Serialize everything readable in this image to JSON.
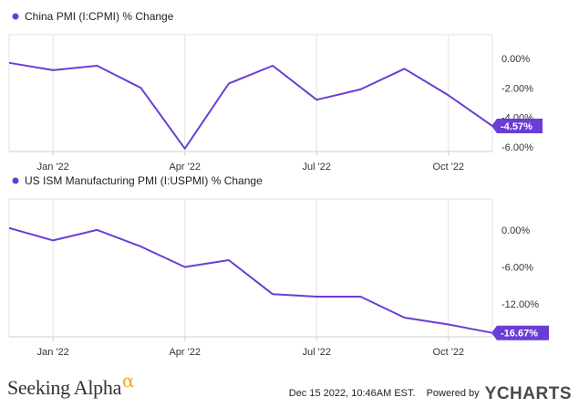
{
  "chart_data": [
    {
      "type": "line",
      "title": "China PMI (I:CPMI) % Change",
      "color": "#6a3dd6",
      "x": [
        "2021-12",
        "2022-01",
        "2022-02",
        "2022-03",
        "2022-04",
        "2022-05",
        "2022-06",
        "2022-07",
        "2022-08",
        "2022-09",
        "2022-10",
        "2022-11"
      ],
      "y": [
        -0.3,
        -0.8,
        -0.5,
        -2.0,
        -6.1,
        -1.7,
        -0.5,
        -2.8,
        -2.1,
        -0.7,
        -2.5,
        -4.57
      ],
      "x_ticks": [
        "Jan '22",
        "Apr '22",
        "Jul '22",
        "Oct '22"
      ],
      "y_ticks": [
        "0.00%",
        "-2.00%",
        "-4.00%",
        "-6.00%"
      ],
      "y_tick_values": [
        0,
        -2,
        -4,
        -6
      ],
      "ylim": [
        -6.3,
        1.6
      ],
      "last_label": "-4.57%"
    },
    {
      "type": "line",
      "title": "US ISM Manufacturing PMI (I:USPMI) % Change",
      "color": "#6a3dd6",
      "x": [
        "2021-12",
        "2022-01",
        "2022-02",
        "2022-03",
        "2022-04",
        "2022-05",
        "2022-06",
        "2022-07",
        "2022-08",
        "2022-09",
        "2022-10",
        "2022-11"
      ],
      "y": [
        0.3,
        -1.7,
        0.0,
        -2.7,
        -6.0,
        -4.9,
        -10.4,
        -10.8,
        -10.8,
        -14.2,
        -15.3,
        -16.67
      ],
      "x_ticks": [
        "Jan '22",
        "Apr '22",
        "Jul '22",
        "Oct '22"
      ],
      "y_ticks": [
        "0.00%",
        "-6.00%",
        "-12.00%"
      ],
      "y_tick_values": [
        0,
        -6,
        -12
      ],
      "ylim": [
        -17.3,
        5.0
      ],
      "last_label": "-16.67%"
    }
  ],
  "footer": {
    "brand": "Seeking Alpha",
    "brand_symbol": "α",
    "timestamp": "Dec 15 2022, 10:46AM EST.",
    "powered_by": "Powered by",
    "ycharts": "YCHARTS"
  }
}
